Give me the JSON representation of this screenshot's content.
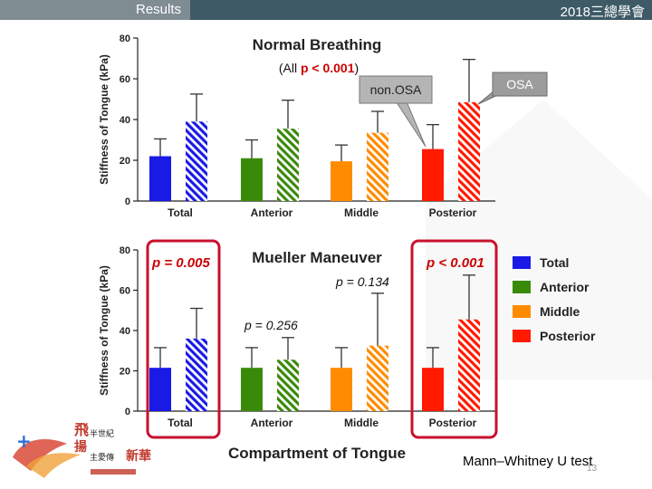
{
  "header": {
    "section": "Results",
    "conference": "2018三總學會"
  },
  "footer": {
    "test_note": "Mann–Whitney U test",
    "page": "13"
  },
  "logo": {
    "line1": "飛",
    "line2": "揚",
    "text_a": "半世紀",
    "text_b": "主愛傳",
    "text_c": "新華"
  },
  "colors": {
    "Total": "#1a1ae6",
    "Anterior": "#3a8a0a",
    "Middle": "#ff8c00",
    "Posterior": "#ff1a00",
    "highlight": "#c8102e",
    "sig": "#cc0000"
  },
  "chart_data": [
    {
      "type": "bar",
      "title": "Normal Breathing",
      "ylabel": "Stiffness of Tongue (kPa)",
      "ylim": [
        0,
        80
      ],
      "yticks": [
        0,
        20,
        40,
        60,
        80
      ],
      "categories": [
        "Total",
        "Anterior",
        "Middle",
        "Posterior"
      ],
      "series": [
        {
          "name": "non.OSA",
          "values": [
            22,
            21,
            19.5,
            25.5
          ],
          "errors": [
            8.5,
            9,
            8,
            12
          ]
        },
        {
          "name": "OSA",
          "values": [
            39,
            35.5,
            33.5,
            48.5
          ],
          "errors": [
            13.5,
            14,
            10.5,
            21
          ]
        }
      ],
      "annotations": {
        "all_prefix": "(All ",
        "all_p": "p < 0.001",
        "all_suffix": ")",
        "nonosa_callout": "non.OSA",
        "osa_callout": "OSA"
      }
    },
    {
      "type": "bar",
      "title": "Mueller Maneuver",
      "xlabel": "Compartment of Tongue",
      "ylabel": "Stiffness of Tongue (kPa)",
      "ylim": [
        0,
        80
      ],
      "yticks": [
        0,
        20,
        40,
        60,
        80
      ],
      "categories": [
        "Total",
        "Anterior",
        "Middle",
        "Posterior"
      ],
      "series": [
        {
          "name": "non.OSA",
          "values": [
            21.5,
            21.5,
            21.5,
            21.5
          ],
          "errors": [
            10,
            10,
            10,
            10
          ]
        },
        {
          "name": "OSA",
          "values": [
            36,
            25.5,
            32.5,
            45.5
          ],
          "errors": [
            15,
            11,
            26,
            22
          ]
        }
      ],
      "annotations": {
        "p_total": "p = 0.005",
        "p_posterior": "p < 0.001",
        "p_middle": "p = 0.134",
        "p_anterior": "p = 0.256"
      },
      "legend": {
        "position": "right",
        "entries": [
          "Total",
          "Anterior",
          "Middle",
          "Posterior"
        ]
      }
    }
  ]
}
